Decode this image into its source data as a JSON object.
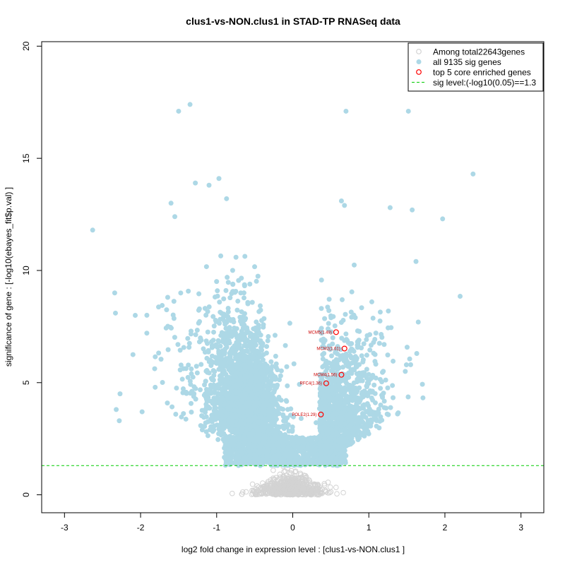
{
  "chart_data": {
    "type": "scatter",
    "title": "clus1-vs-NON.clus1 in STAD-TP RNASeq data",
    "xlabel": "log2 fold change in expression level : [clus1-vs-NON.clus1 ]",
    "ylabel": "significance of gene : [-log10(ebayes_fit$p.val) ]",
    "xlim": [
      -3.3,
      3.3
    ],
    "ylim": [
      -0.8,
      20.2
    ],
    "x_ticks": [
      -3,
      -2,
      -1,
      0,
      1,
      2,
      3
    ],
    "y_ticks": [
      0,
      5,
      10,
      15,
      20
    ],
    "threshold": 1.3,
    "colors": {
      "all": "#d3d3d3",
      "sig": "#add8e6",
      "core": "#ff0000",
      "threshold": "#00cc00"
    },
    "legend": {
      "position": "top-right",
      "items": [
        {
          "label": "Among total22643genes",
          "marker": "open-circle-gray"
        },
        {
          "label": "all 9135 sig genes",
          "marker": "filled-circle-lightblue"
        },
        {
          "label": "top 5 core enriched genes",
          "marker": "open-circle-red"
        },
        {
          "label": "sig level:(-log10(0.05)==1.3",
          "marker": "dashed-line-green"
        }
      ]
    },
    "core_genes": [
      {
        "label": "MCM5(1.49)",
        "x": 0.57,
        "y": 7.25
      },
      {
        "label": "MCM2(1.61)",
        "x": 0.68,
        "y": 6.52
      },
      {
        "label": "MCM4(1.56)",
        "x": 0.64,
        "y": 5.35
      },
      {
        "label": "RFC4(1.36)",
        "x": 0.44,
        "y": 4.97
      },
      {
        "label": "POLE2(1.29)",
        "x": 0.37,
        "y": 3.58
      }
    ],
    "notable_sig_points": [
      {
        "x": -1.35,
        "y": 17.4
      },
      {
        "x": -1.5,
        "y": 17.1
      },
      {
        "x": 0.7,
        "y": 17.1
      },
      {
        "x": 1.52,
        "y": 17.1
      },
      {
        "x": 2.37,
        "y": 14.3
      },
      {
        "x": -0.97,
        "y": 14.1
      },
      {
        "x": -1.28,
        "y": 13.9
      },
      {
        "x": -1.1,
        "y": 13.8
      },
      {
        "x": 1.97,
        "y": 12.3
      },
      {
        "x": -2.63,
        "y": 11.8
      },
      {
        "x": 1.57,
        "y": 12.7
      },
      {
        "x": 1.28,
        "y": 12.8
      },
      {
        "x": 0.64,
        "y": 13.1
      },
      {
        "x": 0.68,
        "y": 12.9
      },
      {
        "x": -1.6,
        "y": 13.0
      },
      {
        "x": -1.55,
        "y": 12.4
      },
      {
        "x": -0.87,
        "y": 13.2
      },
      {
        "x": -2.34,
        "y": 9.0
      },
      {
        "x": -2.33,
        "y": 8.1
      },
      {
        "x": -2.1,
        "y": 6.25
      },
      {
        "x": -2.27,
        "y": 4.5
      },
      {
        "x": -2.32,
        "y": 3.8
      },
      {
        "x": -2.28,
        "y": 3.3
      },
      {
        "x": -1.98,
        "y": 3.7
      },
      {
        "x": -2.07,
        "y": 8.0
      },
      {
        "x": 2.2,
        "y": 8.85
      },
      {
        "x": 1.65,
        "y": 7.7
      },
      {
        "x": 1.62,
        "y": 10.4
      },
      {
        "x": 1.55,
        "y": 5.8
      },
      {
        "x": 1.63,
        "y": 6.3
      }
    ]
  }
}
